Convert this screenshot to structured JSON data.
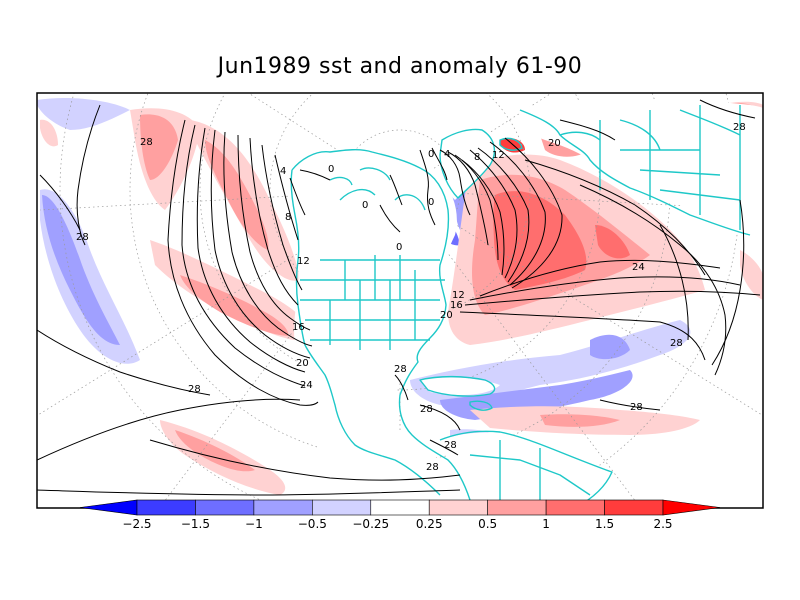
{
  "title": "Jun1989 sst and anomaly 61-90",
  "colorbar": {
    "tick_labels": [
      "-2.5",
      "-1.5",
      "-1",
      "-0.5",
      "-0.25",
      "0.25",
      "0.5",
      "1",
      "1.5",
      "2.5"
    ],
    "colors": [
      "#0000ff",
      "#3c3cff",
      "#6e6eff",
      "#a0a0ff",
      "#d2d2ff",
      "#ffffff",
      "#ffd2d2",
      "#ffa0a0",
      "#ff6e6e",
      "#ff3c3c",
      "#ff0000"
    ]
  },
  "contour_labels": [
    {
      "text": "28"
    },
    {
      "text": "28"
    },
    {
      "text": "4"
    },
    {
      "text": "0"
    },
    {
      "text": "8"
    },
    {
      "text": "12"
    },
    {
      "text": "16"
    },
    {
      "text": "20"
    },
    {
      "text": "24"
    },
    {
      "text": "28"
    },
    {
      "text": "28"
    },
    {
      "text": "28"
    },
    {
      "text": "28"
    },
    {
      "text": "28"
    },
    {
      "text": "0"
    },
    {
      "text": "0"
    },
    {
      "text": "0"
    },
    {
      "text": "4"
    },
    {
      "text": "8"
    },
    {
      "text": "12"
    },
    {
      "text": "16"
    },
    {
      "text": "20"
    },
    {
      "text": "24"
    },
    {
      "text": "28"
    },
    {
      "text": "28"
    },
    {
      "text": "28"
    },
    {
      "text": "12"
    },
    {
      "text": "20"
    },
    {
      "text": "0"
    }
  ]
}
